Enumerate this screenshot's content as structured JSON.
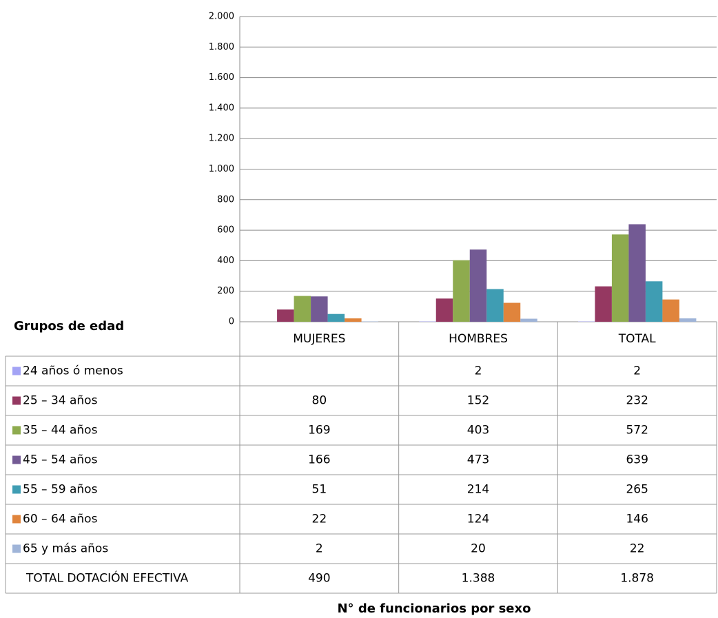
{
  "chart_data": {
    "type": "bar",
    "table_title": "Grupos de edad",
    "x_label": "N° de funcionarios por sexo",
    "categories": [
      "MUJERES",
      "HOMBRES",
      "TOTAL"
    ],
    "series": [
      {
        "name": "24 años ó menos",
        "color": "#a3a3f5",
        "values": [
          null,
          2,
          2
        ]
      },
      {
        "name": "25 – 34 años",
        "color": "#953861",
        "values": [
          80,
          152,
          232
        ]
      },
      {
        "name": "35 – 44 años",
        "color": "#8eab4e",
        "values": [
          169,
          403,
          572
        ]
      },
      {
        "name": "45 – 54 años",
        "color": "#735a94",
        "values": [
          166,
          473,
          639
        ]
      },
      {
        "name": "55 – 59 años",
        "color": "#3f9db3",
        "values": [
          51,
          214,
          265
        ]
      },
      {
        "name": "60 – 64 años",
        "color": "#e0843c",
        "values": [
          22,
          124,
          146
        ]
      },
      {
        "name": " 65  y más años",
        "color": "#9fb4d8",
        "values": [
          2,
          20,
          22
        ]
      }
    ],
    "totals": {
      "name": "TOTAL DOTACIÓN EFECTIVA",
      "values": [
        490,
        1388,
        1878
      ],
      "value_labels": [
        "490",
        "1.388",
        "1.878"
      ]
    },
    "ylim": [
      0,
      2000
    ],
    "yticks": [
      0,
      200,
      400,
      600,
      800,
      {
        "value": 1000,
        "label": "1.000"
      },
      {
        "value": 1200,
        "label": "1.200"
      },
      {
        "value": 1400,
        "label": "1.400"
      },
      {
        "value": 1600,
        "label": "1.600"
      },
      {
        "value": 1800,
        "label": "1.800"
      },
      {
        "value": 2000,
        "label": "2.000"
      }
    ],
    "grid": true
  }
}
